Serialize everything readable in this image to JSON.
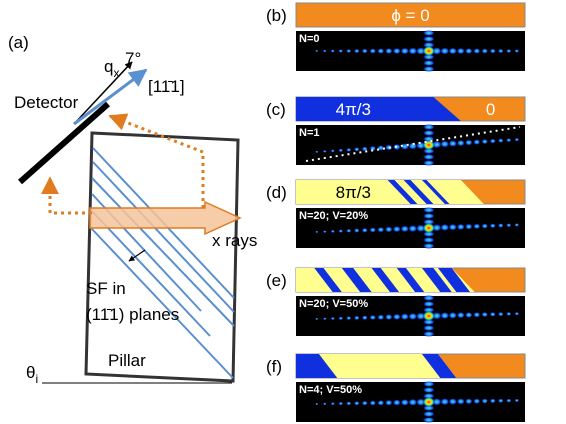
{
  "panel_a": {
    "label": "(a)",
    "q_label": "q",
    "q_subscript": "x",
    "angle": "7°",
    "direction": "[11̄1]",
    "detector": "Detector",
    "xrays": "x rays",
    "sf_line1": "SF in",
    "sf_line2": "(11̄1) planes",
    "theta": "θ",
    "theta_subscript": "i",
    "pillar": "Pillar"
  },
  "panels": [
    {
      "label": "(b)",
      "phase_labels": [
        "ϕ = 0"
      ],
      "text": "N=0"
    },
    {
      "label": "(c)",
      "phase_labels": [
        "4π/3",
        "0"
      ],
      "text": "N=1"
    },
    {
      "label": "(d)",
      "phase_labels": [
        "8π/3"
      ],
      "text": "N=20; V=20%"
    },
    {
      "label": "(e)",
      "phase_labels": [],
      "text": "N=20; V=50%"
    },
    {
      "label": "(f)",
      "phase_labels": [],
      "text": "N=4; V=50%"
    }
  ]
}
